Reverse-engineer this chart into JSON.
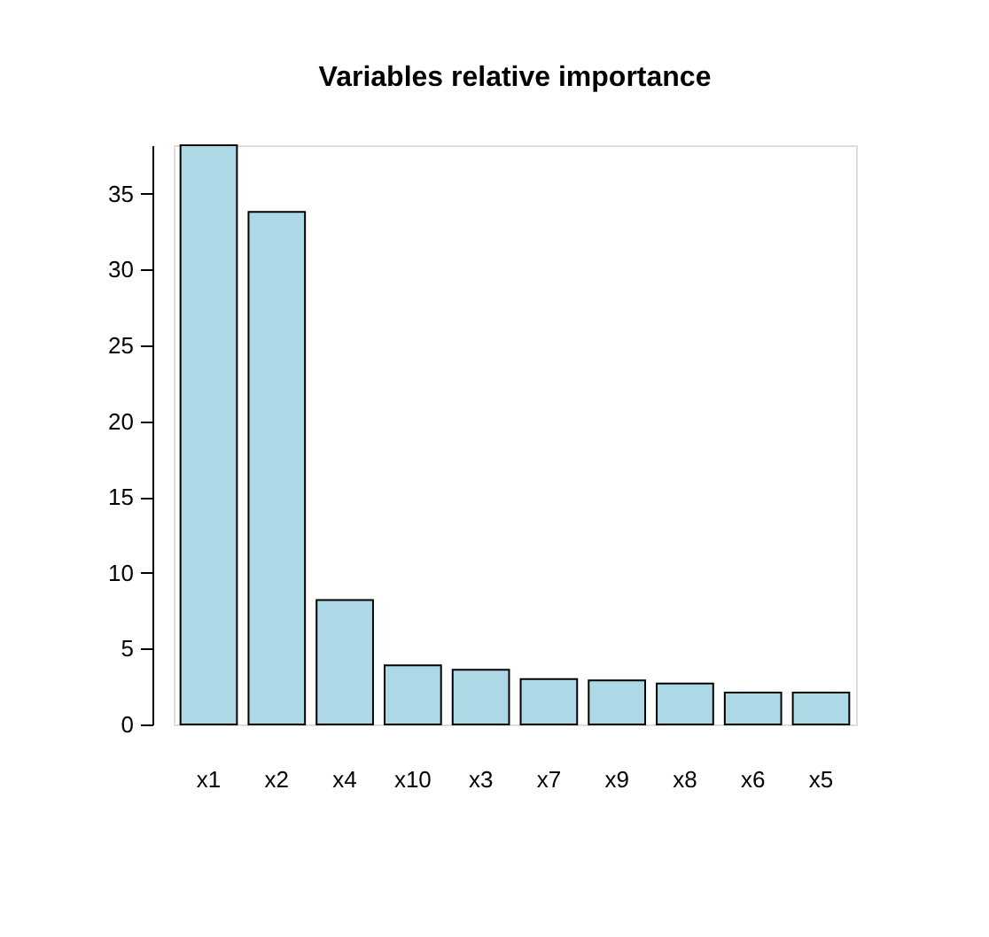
{
  "chart_data": {
    "type": "bar",
    "title": "Variables relative importance",
    "categories": [
      "x1",
      "x2",
      "x4",
      "x10",
      "x3",
      "x7",
      "x9",
      "x8",
      "x6",
      "x5"
    ],
    "values": [
      38.2,
      33.8,
      8.2,
      3.9,
      3.6,
      3.0,
      2.9,
      2.7,
      2.1,
      2.1
    ],
    "color": "#add8e6",
    "ylim": [
      0,
      38.2
    ],
    "yticks": [
      0,
      5,
      10,
      15,
      20,
      25,
      30,
      35
    ],
    "grid": false
  }
}
